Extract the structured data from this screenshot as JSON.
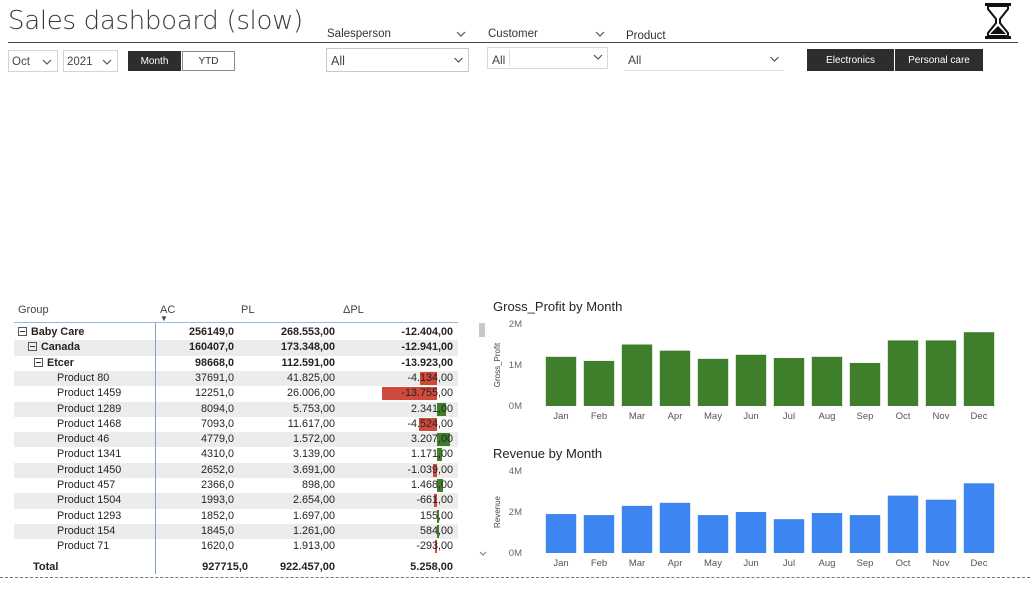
{
  "header": {
    "title": "Sales dashboard (slow)"
  },
  "filters": {
    "month": {
      "value": "Oct"
    },
    "year": {
      "value": "2021"
    },
    "period_buttons": [
      {
        "label": "Month",
        "selected": true
      },
      {
        "label": "YTD",
        "selected": false
      }
    ],
    "salesperson": {
      "label": "Salesperson",
      "value": "All"
    },
    "customer": {
      "label": "Customer",
      "value": "All"
    },
    "product": {
      "label": "Product",
      "value": "All"
    },
    "category_buttons": [
      {
        "label": "Electronics"
      },
      {
        "label": "Personal care"
      }
    ]
  },
  "table": {
    "columns": [
      "Group",
      "AC",
      "PL",
      "ΔPL"
    ],
    "sort_indicator": "▼",
    "rows": [
      {
        "group": "Baby Care",
        "ac": "256149,0",
        "pl": "268.553,00",
        "dpl": "-12.404,00",
        "level": 0,
        "bold": true,
        "expander": true,
        "delta": null
      },
      {
        "group": "Canada",
        "ac": "160407,0",
        "pl": "173.348,00",
        "dpl": "-12.941,00",
        "level": 1,
        "bold": true,
        "expander": true,
        "delta": null
      },
      {
        "group": "Etcer",
        "ac": "98668,0",
        "pl": "112.591,00",
        "dpl": "-13.923,00",
        "level": 2,
        "bold": true,
        "expander": true,
        "delta": null
      },
      {
        "group": "Product 80",
        "ac": "37691,0",
        "pl": "41.825,00",
        "dpl": "-4.134,00",
        "level": 3,
        "bold": false,
        "expander": false,
        "delta": -4134
      },
      {
        "group": "Product 1459",
        "ac": "12251,0",
        "pl": "26.006,00",
        "dpl": "-13.755,00",
        "level": 3,
        "bold": false,
        "expander": false,
        "delta": -13755
      },
      {
        "group": "Product 1289",
        "ac": "8094,0",
        "pl": "5.753,00",
        "dpl": "2.341,00",
        "level": 3,
        "bold": false,
        "expander": false,
        "delta": 2341
      },
      {
        "group": "Product 1468",
        "ac": "7093,0",
        "pl": "11.617,00",
        "dpl": "-4.524,00",
        "level": 3,
        "bold": false,
        "expander": false,
        "delta": -4524
      },
      {
        "group": "Product 46",
        "ac": "4779,0",
        "pl": "1.572,00",
        "dpl": "3.207,00",
        "level": 3,
        "bold": false,
        "expander": false,
        "delta": 3207
      },
      {
        "group": "Product 1341",
        "ac": "4310,0",
        "pl": "3.139,00",
        "dpl": "1.171,00",
        "level": 3,
        "bold": false,
        "expander": false,
        "delta": 1171
      },
      {
        "group": "Product 1450",
        "ac": "2652,0",
        "pl": "3.691,00",
        "dpl": "-1.039,00",
        "level": 3,
        "bold": false,
        "expander": false,
        "delta": -1039
      },
      {
        "group": "Product 457",
        "ac": "2366,0",
        "pl": "898,00",
        "dpl": "1.468,00",
        "level": 3,
        "bold": false,
        "expander": false,
        "delta": 1468
      },
      {
        "group": "Product 1504",
        "ac": "1993,0",
        "pl": "2.654,00",
        "dpl": "-661,00",
        "level": 3,
        "bold": false,
        "expander": false,
        "delta": -661
      },
      {
        "group": "Product 1293",
        "ac": "1852,0",
        "pl": "1.697,00",
        "dpl": "155,00",
        "level": 3,
        "bold": false,
        "expander": false,
        "delta": 155
      },
      {
        "group": "Product 154",
        "ac": "1845,0",
        "pl": "1.261,00",
        "dpl": "584,00",
        "level": 3,
        "bold": false,
        "expander": false,
        "delta": 584
      },
      {
        "group": "Product 71",
        "ac": "1620,0",
        "pl": "1.913,00",
        "dpl": "-293,00",
        "level": 3,
        "bold": false,
        "expander": false,
        "delta": -293
      }
    ],
    "total": {
      "group": "Total",
      "ac": "927715,0",
      "pl": "922.457,00",
      "dpl": "5.258,00"
    }
  },
  "colors": {
    "positive": "#3f7f2b",
    "negative": "#d04a3b",
    "gross_profit_bar": "#3f7f2b",
    "revenue_bar": "#3d85f0",
    "dark_button": "#2d2d2d"
  },
  "chart_data": [
    {
      "type": "bar",
      "title": "Gross_Profit by Month",
      "xlabel": "",
      "ylabel": "Gross_Profit",
      "categories": [
        "Jan",
        "Feb",
        "Mar",
        "Apr",
        "May",
        "Jun",
        "Jul",
        "Aug",
        "Sep",
        "Oct",
        "Nov",
        "Dec"
      ],
      "values": [
        1.2,
        1.1,
        1.5,
        1.35,
        1.15,
        1.25,
        1.17,
        1.2,
        1.05,
        1.6,
        1.6,
        1.8
      ],
      "y_ticks": [
        "0M",
        "1M",
        "2M"
      ],
      "ylim": [
        0,
        2
      ],
      "units": "M",
      "grid": false
    },
    {
      "type": "bar",
      "title": "Revenue by Month",
      "xlabel": "",
      "ylabel": "Revenue",
      "categories": [
        "Jan",
        "Feb",
        "Mar",
        "Apr",
        "May",
        "Jun",
        "Jul",
        "Aug",
        "Sep",
        "Oct",
        "Nov",
        "Dec"
      ],
      "values": [
        1.9,
        1.85,
        2.3,
        2.45,
        1.85,
        2.0,
        1.65,
        1.95,
        1.85,
        2.8,
        2.6,
        3.4
      ],
      "y_ticks": [
        "0M",
        "2M",
        "4M"
      ],
      "ylim": [
        0,
        4
      ],
      "units": "M",
      "grid": false
    }
  ]
}
